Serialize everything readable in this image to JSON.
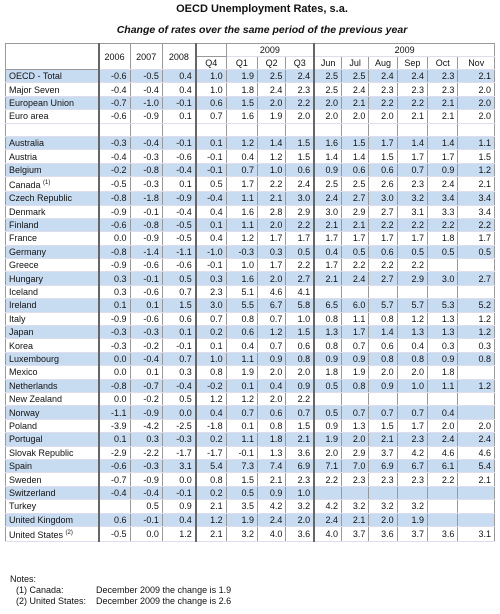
{
  "title": "OECD Unemployment Rates, s.a.",
  "subtitle": "Change of rates over the same period of the previous year",
  "table": {
    "header": {
      "years": [
        "2006",
        "2007",
        "2008"
      ],
      "quarter_year": "2009",
      "quarters": [
        "Q4",
        "Q1",
        "Q2",
        "Q3"
      ],
      "month_year": "2009",
      "months": [
        "Jun",
        "Jul",
        "Aug",
        "Sep",
        "Oct",
        "Nov"
      ]
    },
    "aggregates": [
      {
        "name": "OECD - Total",
        "values": [
          "-0.6",
          "-0.5",
          "0.4",
          "1.0",
          "1.9",
          "2.5",
          "2.4",
          "2.5",
          "2.5",
          "2.4",
          "2.4",
          "2.3",
          "2.1"
        ]
      },
      {
        "name": "Major Seven",
        "values": [
          "-0.4",
          "-0.4",
          "0.4",
          "1.0",
          "1.8",
          "2.4",
          "2.3",
          "2.5",
          "2.4",
          "2.3",
          "2.3",
          "2.3",
          "2.0"
        ]
      },
      {
        "name": "European Union",
        "values": [
          "-0.7",
          "-1.0",
          "-0.1",
          "0.6",
          "1.5",
          "2.0",
          "2.2",
          "2.0",
          "2.1",
          "2.2",
          "2.2",
          "2.1",
          "2.0"
        ]
      },
      {
        "name": "Euro area",
        "values": [
          "-0.6",
          "-0.9",
          "0.1",
          "0.7",
          "1.6",
          "1.9",
          "2.0",
          "2.0",
          "2.0",
          "2.0",
          "2.1",
          "2.1",
          "2.0"
        ]
      }
    ],
    "countries": [
      {
        "name": "Australia",
        "values": [
          "-0.3",
          "-0.4",
          "-0.1",
          "0.1",
          "1.2",
          "1.4",
          "1.5",
          "1.6",
          "1.5",
          "1.7",
          "1.4",
          "1.4",
          "1.1"
        ]
      },
      {
        "name": "Austria",
        "values": [
          "-0.4",
          "-0.3",
          "-0.6",
          "-0.1",
          "0.4",
          "1.2",
          "1.5",
          "1.4",
          "1.4",
          "1.5",
          "1.7",
          "1.7",
          "1.5"
        ]
      },
      {
        "name": "Belgium",
        "values": [
          "-0.2",
          "-0.8",
          "-0.4",
          "-0.1",
          "0.7",
          "1.0",
          "0.6",
          "0.9",
          "0.6",
          "0.6",
          "0.7",
          "0.9",
          "1.2"
        ]
      },
      {
        "name": "Canada",
        "note": "(1)",
        "values": [
          "-0.5",
          "-0.3",
          "0.1",
          "0.5",
          "1.7",
          "2.2",
          "2.4",
          "2.5",
          "2.5",
          "2.6",
          "2.3",
          "2.4",
          "2.1"
        ]
      },
      {
        "name": "Czech Republic",
        "values": [
          "-0.8",
          "-1.8",
          "-0.9",
          "-0.4",
          "1.1",
          "2.1",
          "3.0",
          "2.4",
          "2.7",
          "3.0",
          "3.2",
          "3.4",
          "3.4"
        ]
      },
      {
        "name": "Denmark",
        "values": [
          "-0.9",
          "-0.1",
          "-0.4",
          "0.4",
          "1.6",
          "2.8",
          "2.9",
          "3.0",
          "2.9",
          "2.7",
          "3.1",
          "3.3",
          "3.4"
        ]
      },
      {
        "name": "Finland",
        "values": [
          "-0.6",
          "-0.8",
          "-0.5",
          "0.1",
          "1.1",
          "2.0",
          "2.2",
          "2.1",
          "2.1",
          "2.2",
          "2.2",
          "2.2",
          "2.2"
        ]
      },
      {
        "name": "France",
        "values": [
          "0.0",
          "-0.9",
          "-0.5",
          "0.4",
          "1.2",
          "1.7",
          "1.7",
          "1.7",
          "1.7",
          "1.7",
          "1.7",
          "1.8",
          "1.7"
        ]
      },
      {
        "name": "Germany",
        "values": [
          "-0.8",
          "-1.4",
          "-1.1",
          "-1.0",
          "-0.3",
          "0.3",
          "0.5",
          "0.4",
          "0.5",
          "0.6",
          "0.5",
          "0.5",
          "0.5"
        ]
      },
      {
        "name": "Greece",
        "values": [
          "-0.9",
          "-0.6",
          "-0.6",
          "-0.1",
          "1.0",
          "1.7",
          "2.2",
          "1.7",
          "2.2",
          "2.2",
          "2.2",
          null,
          null
        ]
      },
      {
        "name": "Hungary",
        "values": [
          "0.3",
          "-0.1",
          "0.5",
          "0.3",
          "1.6",
          "2.0",
          "2.7",
          "2.1",
          "2.4",
          "2.7",
          "2.9",
          "3.0",
          "2.7"
        ]
      },
      {
        "name": "Iceland",
        "values": [
          "0.3",
          "-0.6",
          "0.7",
          "2.3",
          "5.1",
          "4.6",
          "4.1",
          null,
          null,
          null,
          null,
          null,
          null
        ]
      },
      {
        "name": "Ireland",
        "values": [
          "0.1",
          "0.1",
          "1.5",
          "3.0",
          "5.5",
          "6.7",
          "5.8",
          "6.5",
          "6.0",
          "5.7",
          "5.7",
          "5.3",
          "5.2"
        ]
      },
      {
        "name": "Italy",
        "values": [
          "-0.9",
          "-0.6",
          "0.6",
          "0.7",
          "0.8",
          "0.7",
          "1.0",
          "0.8",
          "1.1",
          "0.8",
          "1.2",
          "1.3",
          "1.2"
        ]
      },
      {
        "name": "Japan",
        "values": [
          "-0.3",
          "-0.3",
          "0.1",
          "0.2",
          "0.6",
          "1.2",
          "1.5",
          "1.3",
          "1.7",
          "1.4",
          "1.3",
          "1.3",
          "1.2"
        ]
      },
      {
        "name": "Korea",
        "values": [
          "-0.3",
          "-0.2",
          "-0.1",
          "0.1",
          "0.4",
          "0.7",
          "0.6",
          "0.8",
          "0.7",
          "0.6",
          "0.4",
          "0.3",
          "0.3"
        ]
      },
      {
        "name": "Luxembourg",
        "values": [
          "0.0",
          "-0.4",
          "0.7",
          "1.0",
          "1.1",
          "0.9",
          "0.8",
          "0.9",
          "0.9",
          "0.8",
          "0.8",
          "0.9",
          "0.8"
        ]
      },
      {
        "name": "Mexico",
        "values": [
          "0.0",
          "0.1",
          "0.3",
          "0.8",
          "1.9",
          "2.0",
          "2.0",
          "1.8",
          "1.9",
          "2.0",
          "2.0",
          "1.8",
          null
        ]
      },
      {
        "name": "Netherlands",
        "values": [
          "-0.8",
          "-0.7",
          "-0.4",
          "-0.2",
          "0.1",
          "0.4",
          "0.9",
          "0.5",
          "0.8",
          "0.9",
          "1.0",
          "1.1",
          "1.2"
        ]
      },
      {
        "name": "New Zealand",
        "values": [
          "0.0",
          "-0.2",
          "0.5",
          "1.2",
          "1.2",
          "2.0",
          "2.2",
          null,
          null,
          null,
          null,
          null,
          null
        ]
      },
      {
        "name": "Norway",
        "values": [
          "-1.1",
          "-0.9",
          "0.0",
          "0.4",
          "0.7",
          "0.6",
          "0.7",
          "0.5",
          "0.7",
          "0.7",
          "0.7",
          "0.4",
          null
        ]
      },
      {
        "name": "Poland",
        "values": [
          "-3.9",
          "-4.2",
          "-2.5",
          "-1.8",
          "0.1",
          "0.8",
          "1.5",
          "0.9",
          "1.3",
          "1.5",
          "1.7",
          "2.0",
          "2.0"
        ]
      },
      {
        "name": "Portugal",
        "values": [
          "0.1",
          "0.3",
          "-0.3",
          "0.2",
          "1.1",
          "1.8",
          "2.1",
          "1.9",
          "2.0",
          "2.1",
          "2.3",
          "2.4",
          "2.4"
        ]
      },
      {
        "name": "Slovak Republic",
        "values": [
          "-2.9",
          "-2.2",
          "-1.7",
          "-1.7",
          "-0.1",
          "1.3",
          "3.6",
          "2.0",
          "2.9",
          "3.7",
          "4.2",
          "4.6",
          "4.6"
        ]
      },
      {
        "name": "Spain",
        "values": [
          "-0.6",
          "-0.3",
          "3.1",
          "5.4",
          "7.3",
          "7.4",
          "6.9",
          "7.1",
          "7.0",
          "6.9",
          "6.7",
          "6.1",
          "5.4"
        ]
      },
      {
        "name": "Sweden",
        "values": [
          "-0.7",
          "-0.9",
          "0.0",
          "0.8",
          "1.5",
          "2.1",
          "2.3",
          "2.2",
          "2.3",
          "2.3",
          "2.3",
          "2.2",
          "2.1"
        ]
      },
      {
        "name": "Switzerland",
        "values": [
          "-0.4",
          "-0.4",
          "-0.1",
          "0.2",
          "0.5",
          "0.9",
          "1.0",
          null,
          null,
          null,
          null,
          null,
          null
        ]
      },
      {
        "name": "Turkey",
        "values": [
          null,
          "0.5",
          "0.9",
          "2.1",
          "3.5",
          "4.2",
          "3.2",
          "4.2",
          "3.2",
          "3.2",
          "3.2",
          null,
          null
        ]
      },
      {
        "name": "United Kingdom",
        "values": [
          "0.6",
          "-0.1",
          "0.4",
          "1.2",
          "1.9",
          "2.4",
          "2.0",
          "2.4",
          "2.1",
          "2.0",
          "1.9",
          null,
          null
        ]
      },
      {
        "name": "United States",
        "note": "(2)",
        "values": [
          "-0.5",
          "0.0",
          "1.2",
          "2.1",
          "3.2",
          "4.0",
          "3.6",
          "4.0",
          "3.7",
          "3.6",
          "3.7",
          "3.6",
          "3.1"
        ]
      }
    ]
  },
  "notes": {
    "title": "Notes:",
    "items": [
      {
        "marker": "(1) Canada:",
        "text": "December 2009 the change is 1.9"
      },
      {
        "marker": "(2) United States:",
        "text": "December 2009 the change is 2.6"
      }
    ]
  }
}
